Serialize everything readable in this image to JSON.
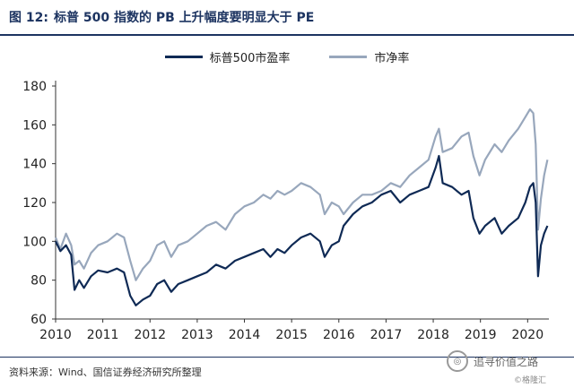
{
  "figure": {
    "label": "图 12:",
    "title": "标普 500 指数的 PB 上升幅度要明显大于 PE"
  },
  "source": "资料来源：Wind、国信证券经济研究所整理",
  "watermark": {
    "main": "追寻价值之路",
    "sub": "©格隆汇"
  },
  "colors": {
    "pe": "#0f2a55",
    "pb": "#98a7bc",
    "accent": "#1d3461"
  },
  "chart_data": {
    "type": "line",
    "x_unit": "year",
    "xlim": [
      2010,
      2020.45
    ],
    "ylim": [
      60,
      180
    ],
    "yticks": [
      60,
      80,
      100,
      120,
      140,
      160,
      180
    ],
    "xticks": [
      "2010",
      "2011",
      "2012",
      "2013",
      "2014",
      "2015",
      "2016",
      "2017",
      "2018",
      "2019",
      "2020"
    ],
    "grid": false,
    "legend": "top-center",
    "series": [
      {
        "name": "标普500市盈率",
        "color": "#0f2a55",
        "points": [
          [
            2010.0,
            100
          ],
          [
            2010.1,
            95
          ],
          [
            2010.22,
            98
          ],
          [
            2010.33,
            93
          ],
          [
            2010.4,
            75
          ],
          [
            2010.5,
            80
          ],
          [
            2010.6,
            76
          ],
          [
            2010.75,
            82
          ],
          [
            2010.9,
            85
          ],
          [
            2011.1,
            84
          ],
          [
            2011.3,
            86
          ],
          [
            2011.45,
            84
          ],
          [
            2011.58,
            72
          ],
          [
            2011.7,
            67
          ],
          [
            2011.85,
            70
          ],
          [
            2012.0,
            72
          ],
          [
            2012.15,
            78
          ],
          [
            2012.3,
            80
          ],
          [
            2012.45,
            74
          ],
          [
            2012.6,
            78
          ],
          [
            2012.8,
            80
          ],
          [
            2013.0,
            82
          ],
          [
            2013.2,
            84
          ],
          [
            2013.4,
            88
          ],
          [
            2013.6,
            86
          ],
          [
            2013.8,
            90
          ],
          [
            2014.0,
            92
          ],
          [
            2014.2,
            94
          ],
          [
            2014.4,
            96
          ],
          [
            2014.55,
            92
          ],
          [
            2014.7,
            96
          ],
          [
            2014.85,
            94
          ],
          [
            2015.0,
            98
          ],
          [
            2015.2,
            102
          ],
          [
            2015.4,
            104
          ],
          [
            2015.6,
            100
          ],
          [
            2015.7,
            92
          ],
          [
            2015.85,
            98
          ],
          [
            2016.0,
            100
          ],
          [
            2016.1,
            108
          ],
          [
            2016.3,
            114
          ],
          [
            2016.5,
            118
          ],
          [
            2016.7,
            120
          ],
          [
            2016.9,
            124
          ],
          [
            2017.1,
            126
          ],
          [
            2017.3,
            120
          ],
          [
            2017.5,
            124
          ],
          [
            2017.7,
            126
          ],
          [
            2017.9,
            128
          ],
          [
            2018.05,
            138
          ],
          [
            2018.12,
            144
          ],
          [
            2018.2,
            130
          ],
          [
            2018.4,
            128
          ],
          [
            2018.6,
            124
          ],
          [
            2018.75,
            126
          ],
          [
            2018.85,
            112
          ],
          [
            2018.98,
            104
          ],
          [
            2019.1,
            108
          ],
          [
            2019.3,
            112
          ],
          [
            2019.45,
            104
          ],
          [
            2019.6,
            108
          ],
          [
            2019.8,
            112
          ],
          [
            2019.95,
            120
          ],
          [
            2020.05,
            128
          ],
          [
            2020.12,
            130
          ],
          [
            2020.17,
            120
          ],
          [
            2020.22,
            82
          ],
          [
            2020.28,
            98
          ],
          [
            2020.35,
            104
          ],
          [
            2020.42,
            108
          ]
        ]
      },
      {
        "name": "市净率",
        "color": "#98a7bc",
        "points": [
          [
            2010.0,
            102
          ],
          [
            2010.1,
            96
          ],
          [
            2010.22,
            104
          ],
          [
            2010.33,
            98
          ],
          [
            2010.4,
            88
          ],
          [
            2010.5,
            90
          ],
          [
            2010.6,
            86
          ],
          [
            2010.75,
            94
          ],
          [
            2010.9,
            98
          ],
          [
            2011.1,
            100
          ],
          [
            2011.3,
            104
          ],
          [
            2011.45,
            102
          ],
          [
            2011.58,
            90
          ],
          [
            2011.7,
            80
          ],
          [
            2011.85,
            86
          ],
          [
            2012.0,
            90
          ],
          [
            2012.15,
            98
          ],
          [
            2012.3,
            100
          ],
          [
            2012.45,
            92
          ],
          [
            2012.6,
            98
          ],
          [
            2012.8,
            100
          ],
          [
            2013.0,
            104
          ],
          [
            2013.2,
            108
          ],
          [
            2013.4,
            110
          ],
          [
            2013.6,
            106
          ],
          [
            2013.8,
            114
          ],
          [
            2014.0,
            118
          ],
          [
            2014.2,
            120
          ],
          [
            2014.4,
            124
          ],
          [
            2014.55,
            122
          ],
          [
            2014.7,
            126
          ],
          [
            2014.85,
            124
          ],
          [
            2015.0,
            126
          ],
          [
            2015.2,
            130
          ],
          [
            2015.4,
            128
          ],
          [
            2015.6,
            124
          ],
          [
            2015.7,
            114
          ],
          [
            2015.85,
            120
          ],
          [
            2016.0,
            118
          ],
          [
            2016.1,
            114
          ],
          [
            2016.3,
            120
          ],
          [
            2016.5,
            124
          ],
          [
            2016.7,
            124
          ],
          [
            2016.9,
            126
          ],
          [
            2017.1,
            130
          ],
          [
            2017.3,
            128
          ],
          [
            2017.5,
            134
          ],
          [
            2017.7,
            138
          ],
          [
            2017.9,
            142
          ],
          [
            2018.05,
            154
          ],
          [
            2018.12,
            158
          ],
          [
            2018.2,
            146
          ],
          [
            2018.4,
            148
          ],
          [
            2018.6,
            154
          ],
          [
            2018.75,
            156
          ],
          [
            2018.85,
            144
          ],
          [
            2018.98,
            134
          ],
          [
            2019.1,
            142
          ],
          [
            2019.3,
            150
          ],
          [
            2019.45,
            146
          ],
          [
            2019.6,
            152
          ],
          [
            2019.8,
            158
          ],
          [
            2019.95,
            164
          ],
          [
            2020.05,
            168
          ],
          [
            2020.12,
            166
          ],
          [
            2020.17,
            150
          ],
          [
            2020.22,
            106
          ],
          [
            2020.28,
            122
          ],
          [
            2020.35,
            134
          ],
          [
            2020.42,
            142
          ]
        ]
      }
    ]
  }
}
